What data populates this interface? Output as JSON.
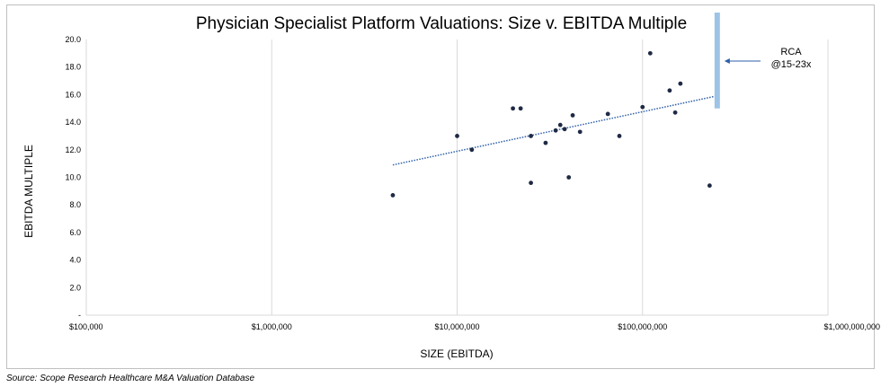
{
  "chart_data": {
    "type": "scatter",
    "title": "Physician Specialist Platform Valuations: Size v. EBITDA Multiple",
    "xlabel": "SIZE (EBITDA)",
    "ylabel": "EBITDA MULTIPLE",
    "x_scale": "log",
    "xlim": [
      100000,
      1000000000
    ],
    "ylim": [
      0,
      20
    ],
    "x_ticks": [
      {
        "value": 100000,
        "label": "$100,000"
      },
      {
        "value": 1000000,
        "label": "$1,000,000"
      },
      {
        "value": 10000000,
        "label": "$10,000,000"
      },
      {
        "value": 100000000,
        "label": "$100,000,000"
      },
      {
        "value": 1000000000,
        "label": "$1,000,000,000"
      }
    ],
    "y_ticks": [
      {
        "value": 0,
        "label": "-"
      },
      {
        "value": 2,
        "label": "2.0"
      },
      {
        "value": 4,
        "label": "4.0"
      },
      {
        "value": 6,
        "label": "6.0"
      },
      {
        "value": 8,
        "label": "8.0"
      },
      {
        "value": 10,
        "label": "10.0"
      },
      {
        "value": 12,
        "label": "12.0"
      },
      {
        "value": 14,
        "label": "14.0"
      },
      {
        "value": 16,
        "label": "16.0"
      },
      {
        "value": 18,
        "label": "18.0"
      },
      {
        "value": 20,
        "label": "20.0"
      }
    ],
    "grid": "vertical",
    "points": [
      {
        "x": 4500000,
        "y": 8.7
      },
      {
        "x": 10000000,
        "y": 13.0
      },
      {
        "x": 12000000,
        "y": 12.0
      },
      {
        "x": 20000000,
        "y": 15.0
      },
      {
        "x": 22000000,
        "y": 15.0
      },
      {
        "x": 25000000,
        "y": 13.0
      },
      {
        "x": 25000000,
        "y": 9.6
      },
      {
        "x": 30000000,
        "y": 12.5
      },
      {
        "x": 34000000,
        "y": 13.4
      },
      {
        "x": 36000000,
        "y": 13.8
      },
      {
        "x": 38000000,
        "y": 13.5
      },
      {
        "x": 40000000,
        "y": 10.0
      },
      {
        "x": 42000000,
        "y": 14.5
      },
      {
        "x": 46000000,
        "y": 13.3
      },
      {
        "x": 65000000,
        "y": 14.6
      },
      {
        "x": 75000000,
        "y": 13.0
      },
      {
        "x": 100000000,
        "y": 15.1
      },
      {
        "x": 110000000,
        "y": 19.0
      },
      {
        "x": 140000000,
        "y": 16.3
      },
      {
        "x": 150000000,
        "y": 14.7
      },
      {
        "x": 160000000,
        "y": 16.8
      },
      {
        "x": 230000000,
        "y": 9.4
      }
    ],
    "trendline": {
      "style": "dotted",
      "color": "#2e5fa8",
      "from": {
        "x": 4500000,
        "y": 10.9
      },
      "to": {
        "x": 250000000,
        "y": 15.9
      }
    },
    "range_bar": {
      "label": "RCA\n@15-23x",
      "x": 250000000,
      "y_from": 15,
      "y_to": 23,
      "color": "#9dc3e6"
    },
    "point_color": "#1f2a44"
  },
  "source": "Source: Scope Research Healthcare M&A Valuation Database"
}
